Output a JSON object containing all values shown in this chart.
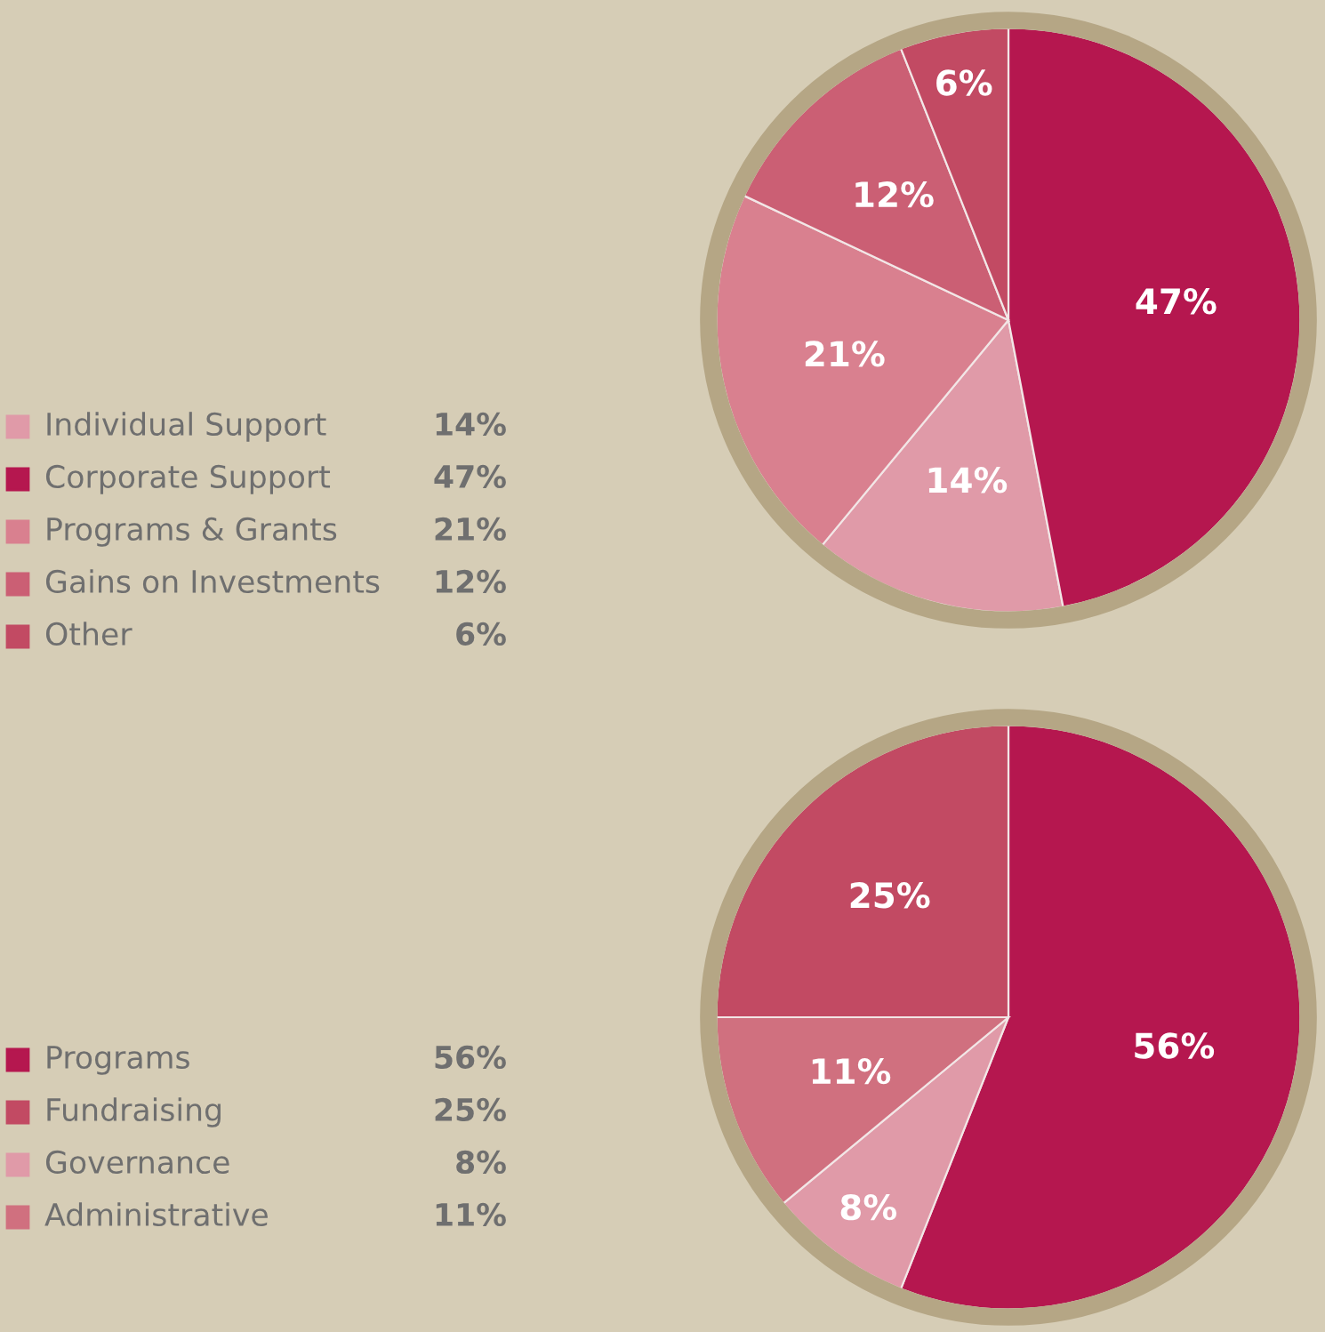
{
  "chart_data": [
    {
      "type": "pie",
      "categories": [
        "Individual Support",
        "Corporate Support",
        "Programs & Grants",
        "Gains on Investments",
        "Other"
      ],
      "values": [
        14,
        47,
        21,
        12,
        6
      ],
      "value_labels": [
        "14%",
        "47%",
        "21%",
        "12%",
        "6%"
      ],
      "colors": [
        "#e09aa8",
        "#b5174f",
        "#d9808f",
        "#cb5f74",
        "#c24a63"
      ],
      "legend": "left"
    },
    {
      "type": "pie",
      "categories": [
        "Programs",
        "Fundraising",
        "Governance",
        "Administrative"
      ],
      "values": [
        56,
        25,
        8,
        11
      ],
      "value_labels": [
        "56%",
        "25%",
        "8%",
        "11%"
      ],
      "colors": [
        "#b5174f",
        "#c24a63",
        "#e09aa8",
        "#d0707f"
      ],
      "legend": "left"
    }
  ]
}
